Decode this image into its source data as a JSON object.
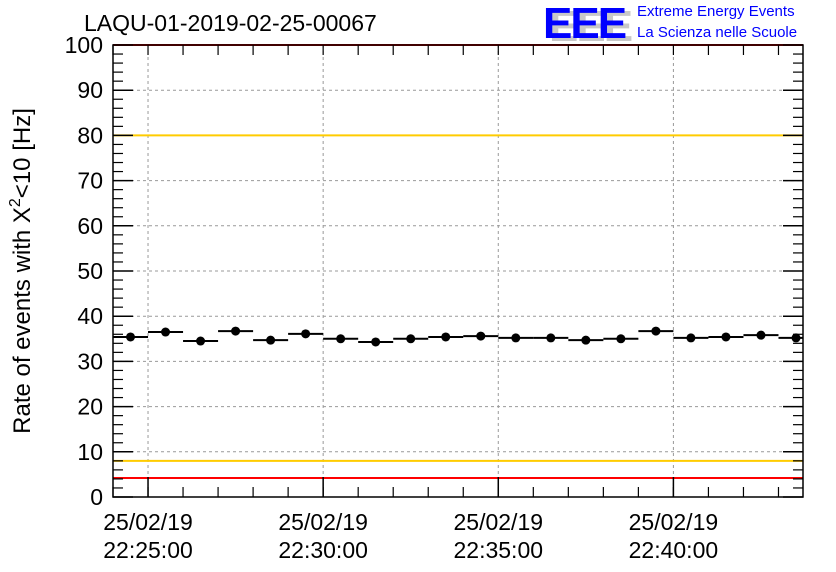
{
  "chart_data": {
    "type": "scatter",
    "title": "LAQU-01-2019-02-25-00067",
    "xlabel": "",
    "ylabel": "Rate of events with X²<10 [Hz]",
    "ylabel_main": "Rate of events with X",
    "ylabel_sup": "2",
    "ylabel_tail": "<10 [Hz]",
    "ylim": [
      0,
      100
    ],
    "yticks": [
      "0",
      "10",
      "20",
      "30",
      "40",
      "50",
      "60",
      "70",
      "80",
      "90",
      "100"
    ],
    "xlim_minutes": [
      -1,
      18.7
    ],
    "xticks": [
      {
        "minute": 0,
        "date": "25/02/19",
        "time": "22:25:00"
      },
      {
        "minute": 5,
        "date": "25/02/19",
        "time": "22:30:00"
      },
      {
        "minute": 10,
        "date": "25/02/19",
        "time": "22:35:00"
      },
      {
        "minute": 15,
        "date": "25/02/19",
        "time": "22:40:00"
      }
    ],
    "bin_width_minutes": 1,
    "x_minutes": [
      -0.5,
      0.5,
      1.5,
      2.5,
      3.5,
      4.5,
      5.5,
      6.5,
      7.5,
      8.5,
      9.5,
      10.5,
      11.5,
      12.5,
      13.5,
      14.5,
      15.5,
      16.5,
      17.5,
      18.5
    ],
    "values": [
      35.4,
      36.5,
      34.5,
      36.7,
      34.7,
      36.1,
      35.0,
      34.3,
      35.0,
      35.4,
      35.6,
      35.2,
      35.2,
      34.7,
      35.0,
      36.7,
      35.2,
      35.4,
      35.8,
      35.2
    ],
    "reference_lines": [
      {
        "value": 100,
        "color": "#ff0000"
      },
      {
        "value": 80,
        "color": "#ffcc00"
      },
      {
        "value": 8,
        "color": "#ffcc00"
      },
      {
        "value": 4.2,
        "color": "#ff0000"
      }
    ],
    "grid": true
  },
  "logo": {
    "mark": "EEE",
    "line1": "Extreme Energy Events",
    "line2": "La Scienza nelle Scuole"
  }
}
